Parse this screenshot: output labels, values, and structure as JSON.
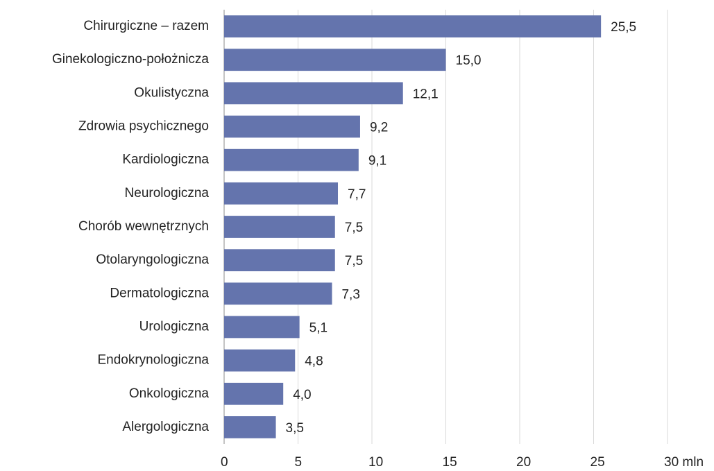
{
  "chart_data": {
    "type": "bar",
    "orientation": "horizontal",
    "categories": [
      "Chirurgiczne – razem",
      "Ginekologiczno-położnicza",
      "Okulistyczna",
      "Zdrowia psychicznego",
      "Kardiologiczna",
      "Neurologiczna",
      "Chorób wewnętrznych",
      "Otolaryngologiczna",
      "Dermatologiczna",
      "Urologiczna",
      "Endokrynologiczna",
      "Onkologiczna",
      "Alergologiczna"
    ],
    "values": [
      25.5,
      15.0,
      12.1,
      9.2,
      9.1,
      7.7,
      7.5,
      7.5,
      7.3,
      5.1,
      4.8,
      4.0,
      3.5
    ],
    "value_labels": [
      "25,5",
      "15,0",
      "12,1",
      "9,2",
      "9,1",
      "7,7",
      "7,5",
      "7,5",
      "7,3",
      "5,1",
      "4,8",
      "4,0",
      "3,5"
    ],
    "color": "#6474ad",
    "xlim": [
      0,
      30
    ],
    "xticks": [
      0,
      5,
      10,
      15,
      20,
      25,
      {
        "value": 30,
        "label": "30 mln"
      }
    ],
    "grid": true
  }
}
